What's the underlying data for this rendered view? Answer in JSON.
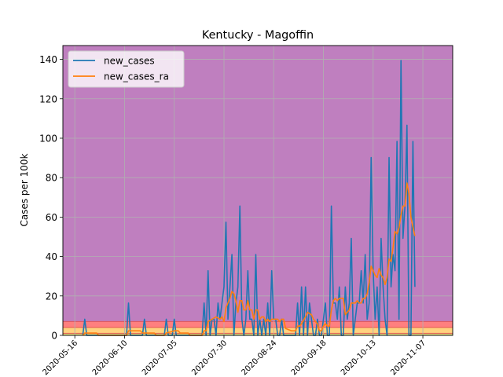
{
  "chart_data": {
    "type": "line",
    "title": "Kentucky - Magoffin",
    "xlabel": "",
    "ylabel": "Cases per 100k",
    "ylim": [
      0,
      147
    ],
    "yticks": [
      0,
      20,
      40,
      60,
      80,
      100,
      120,
      140
    ],
    "xlim": [
      "2020-05-10",
      "2020-11-22"
    ],
    "xticks": [
      "2020-05-16",
      "2020-06-10",
      "2020-07-05",
      "2020-07-30",
      "2020-08-24",
      "2020-09-18",
      "2020-10-13",
      "2020-11-07"
    ],
    "grid": true,
    "legend": "top-left",
    "bands": [
      {
        "from": 0,
        "to": 1,
        "color": "#e0e07f"
      },
      {
        "from": 1,
        "to": 4,
        "color": "#ffd27f"
      },
      {
        "from": 4,
        "to": 7,
        "color": "#ff7f7f"
      },
      {
        "from": 7,
        "to": 147,
        "color": "#bf7fbf"
      }
    ],
    "band_edges": [
      1,
      4,
      7
    ],
    "series": [
      {
        "name": "new_cases",
        "color": "#1f77b4",
        "points": [
          [
            "2020-05-20",
            0
          ],
          [
            "2020-05-21",
            8.2
          ],
          [
            "2020-05-22",
            0
          ],
          [
            "2020-06-11",
            0
          ],
          [
            "2020-06-12",
            16.4
          ],
          [
            "2020-06-13",
            0
          ],
          [
            "2020-06-19",
            0
          ],
          [
            "2020-06-20",
            8.2
          ],
          [
            "2020-06-21",
            0
          ],
          [
            "2020-06-30",
            0
          ],
          [
            "2020-07-01",
            8.2
          ],
          [
            "2020-07-02",
            0
          ],
          [
            "2020-07-04",
            0
          ],
          [
            "2020-07-05",
            8.2
          ],
          [
            "2020-07-06",
            0
          ],
          [
            "2020-07-19",
            0
          ],
          [
            "2020-07-20",
            16.4
          ],
          [
            "2020-07-21",
            0
          ],
          [
            "2020-07-22",
            32.8
          ],
          [
            "2020-07-23",
            0
          ],
          [
            "2020-07-24",
            8.2
          ],
          [
            "2020-07-25",
            8.2
          ],
          [
            "2020-07-26",
            0
          ],
          [
            "2020-07-27",
            16.4
          ],
          [
            "2020-07-28",
            8.2
          ],
          [
            "2020-07-29",
            16.4
          ],
          [
            "2020-07-30",
            24.6
          ],
          [
            "2020-07-31",
            57.4
          ],
          [
            "2020-08-01",
            8.2
          ],
          [
            "2020-08-02",
            24.6
          ],
          [
            "2020-08-03",
            41
          ],
          [
            "2020-08-04",
            0
          ],
          [
            "2020-08-05",
            16.4
          ],
          [
            "2020-08-06",
            24.6
          ],
          [
            "2020-08-07",
            65.6
          ],
          [
            "2020-08-08",
            8.2
          ],
          [
            "2020-08-09",
            0
          ],
          [
            "2020-08-10",
            8.2
          ],
          [
            "2020-08-11",
            32.8
          ],
          [
            "2020-08-12",
            8.2
          ],
          [
            "2020-08-13",
            8.2
          ],
          [
            "2020-08-14",
            0
          ],
          [
            "2020-08-15",
            41
          ],
          [
            "2020-08-16",
            0
          ],
          [
            "2020-08-17",
            8.2
          ],
          [
            "2020-08-18",
            0
          ],
          [
            "2020-08-19",
            8.2
          ],
          [
            "2020-08-20",
            0
          ],
          [
            "2020-08-21",
            16.4
          ],
          [
            "2020-08-22",
            0
          ],
          [
            "2020-08-23",
            32.8
          ],
          [
            "2020-08-24",
            8.2
          ],
          [
            "2020-08-25",
            8.2
          ],
          [
            "2020-08-26",
            0
          ],
          [
            "2020-08-27",
            0
          ],
          [
            "2020-08-28",
            8.2
          ],
          [
            "2020-08-29",
            0
          ],
          [
            "2020-09-02",
            0
          ],
          [
            "2020-09-04",
            0
          ],
          [
            "2020-09-05",
            16.4
          ],
          [
            "2020-09-06",
            0
          ],
          [
            "2020-09-07",
            24.6
          ],
          [
            "2020-09-08",
            0
          ],
          [
            "2020-09-09",
            24.6
          ],
          [
            "2020-09-10",
            0
          ],
          [
            "2020-09-11",
            16.4
          ],
          [
            "2020-09-12",
            8.2
          ],
          [
            "2020-09-13",
            0
          ],
          [
            "2020-09-14",
            0
          ],
          [
            "2020-09-15",
            8.2
          ],
          [
            "2020-09-16",
            0
          ],
          [
            "2020-09-17",
            0
          ],
          [
            "2020-09-18",
            8.2
          ],
          [
            "2020-09-19",
            16.4
          ],
          [
            "2020-09-20",
            0
          ],
          [
            "2020-09-21",
            0
          ],
          [
            "2020-09-22",
            65.6
          ],
          [
            "2020-09-23",
            16.4
          ],
          [
            "2020-09-24",
            16.4
          ],
          [
            "2020-09-25",
            8.2
          ],
          [
            "2020-09-26",
            24.6
          ],
          [
            "2020-09-27",
            0
          ],
          [
            "2020-09-28",
            0
          ],
          [
            "2020-09-29",
            24.6
          ],
          [
            "2020-09-30",
            8.2
          ],
          [
            "2020-10-01",
            16.4
          ],
          [
            "2020-10-02",
            49.2
          ],
          [
            "2020-10-03",
            0
          ],
          [
            "2020-10-04",
            8.2
          ],
          [
            "2020-10-05",
            16.4
          ],
          [
            "2020-10-06",
            16.4
          ],
          [
            "2020-10-07",
            32.8
          ],
          [
            "2020-10-08",
            16.4
          ],
          [
            "2020-10-09",
            41
          ],
          [
            "2020-10-10",
            8.2
          ],
          [
            "2020-10-11",
            16.4
          ],
          [
            "2020-10-12",
            90.2
          ],
          [
            "2020-10-13",
            32.8
          ],
          [
            "2020-10-14",
            8.2
          ],
          [
            "2020-10-15",
            24.6
          ],
          [
            "2020-10-16",
            0
          ],
          [
            "2020-10-17",
            49.2
          ],
          [
            "2020-10-18",
            24.6
          ],
          [
            "2020-10-19",
            8.2
          ],
          [
            "2020-10-20",
            0
          ],
          [
            "2020-10-21",
            90.2
          ],
          [
            "2020-10-22",
            24.6
          ],
          [
            "2020-10-23",
            41
          ],
          [
            "2020-10-24",
            32.8
          ],
          [
            "2020-10-25",
            98.4
          ],
          [
            "2020-10-26",
            8.2
          ],
          [
            "2020-10-27",
            139.4
          ],
          [
            "2020-10-28",
            49.2
          ],
          [
            "2020-10-29",
            65.6
          ],
          [
            "2020-10-30",
            106.6
          ],
          [
            "2020-10-31",
            0
          ],
          [
            "2020-11-01",
            0
          ],
          [
            "2020-11-02",
            98.4
          ],
          [
            "2020-11-03",
            24.6
          ]
        ]
      },
      {
        "name": "new_cases_ra",
        "color": "#ff7f0e",
        "points": [
          [
            "2020-05-20",
            0
          ],
          [
            "2020-05-21",
            1.2
          ],
          [
            "2020-05-27",
            1.2
          ],
          [
            "2020-05-28",
            0
          ],
          [
            "2020-06-11",
            0
          ],
          [
            "2020-06-12",
            2.3
          ],
          [
            "2020-06-18",
            2.3
          ],
          [
            "2020-06-19",
            1.2
          ],
          [
            "2020-06-25",
            1.2
          ],
          [
            "2020-06-26",
            0
          ],
          [
            "2020-06-30",
            0
          ],
          [
            "2020-07-01",
            1.2
          ],
          [
            "2020-07-05",
            2.3
          ],
          [
            "2020-07-07",
            2.3
          ],
          [
            "2020-07-08",
            1.2
          ],
          [
            "2020-07-12",
            1.2
          ],
          [
            "2020-07-13",
            0
          ],
          [
            "2020-07-19",
            0
          ],
          [
            "2020-07-20",
            2.3
          ],
          [
            "2020-07-21",
            2.3
          ],
          [
            "2020-07-22",
            7
          ],
          [
            "2020-07-24",
            8.2
          ],
          [
            "2020-07-26",
            9.4
          ],
          [
            "2020-07-28",
            8.2
          ],
          [
            "2020-07-29",
            9.4
          ],
          [
            "2020-07-30",
            7
          ],
          [
            "2020-07-31",
            14
          ],
          [
            "2020-08-01",
            16.4
          ],
          [
            "2020-08-02",
            18.8
          ],
          [
            "2020-08-03",
            22.3
          ],
          [
            "2020-08-04",
            21.1
          ],
          [
            "2020-08-05",
            17.6
          ],
          [
            "2020-08-06",
            11.7
          ],
          [
            "2020-08-07",
            17.6
          ],
          [
            "2020-08-08",
            17.6
          ],
          [
            "2020-08-09",
            12.9
          ],
          [
            "2020-08-10",
            12.9
          ],
          [
            "2020-08-11",
            17.6
          ],
          [
            "2020-08-12",
            12.9
          ],
          [
            "2020-08-13",
            12.9
          ],
          [
            "2020-08-14",
            8.2
          ],
          [
            "2020-08-15",
            12.9
          ],
          [
            "2020-08-16",
            12.9
          ],
          [
            "2020-08-17",
            8.2
          ],
          [
            "2020-08-18",
            9.4
          ],
          [
            "2020-08-19",
            9.4
          ],
          [
            "2020-08-20",
            7
          ],
          [
            "2020-08-21",
            8.2
          ],
          [
            "2020-08-22",
            7
          ],
          [
            "2020-08-23",
            8.2
          ],
          [
            "2020-08-24",
            8.2
          ],
          [
            "2020-08-26",
            8.2
          ],
          [
            "2020-08-27",
            7
          ],
          [
            "2020-08-28",
            8.2
          ],
          [
            "2020-08-29",
            8.2
          ],
          [
            "2020-08-30",
            3.5
          ],
          [
            "2020-09-02",
            2.3
          ],
          [
            "2020-09-04",
            2.3
          ],
          [
            "2020-09-05",
            4.7
          ],
          [
            "2020-09-06",
            4.7
          ],
          [
            "2020-09-07",
            5.9
          ],
          [
            "2020-09-09",
            9.4
          ],
          [
            "2020-09-10",
            11.7
          ],
          [
            "2020-09-12",
            10.5
          ],
          [
            "2020-09-13",
            8.2
          ],
          [
            "2020-09-14",
            7
          ],
          [
            "2020-09-15",
            5.9
          ],
          [
            "2020-09-16",
            2.3
          ],
          [
            "2020-09-17",
            2.3
          ],
          [
            "2020-09-18",
            4.7
          ],
          [
            "2020-09-19",
            5.9
          ],
          [
            "2020-09-20",
            4.7
          ],
          [
            "2020-09-21",
            4.7
          ],
          [
            "2020-09-22",
            12.9
          ],
          [
            "2020-09-23",
            17.6
          ],
          [
            "2020-09-24",
            18.8
          ],
          [
            "2020-09-25",
            17.6
          ],
          [
            "2020-09-26",
            18.8
          ],
          [
            "2020-09-27",
            18.8
          ],
          [
            "2020-09-28",
            18.8
          ],
          [
            "2020-09-29",
            10.5
          ],
          [
            "2020-09-30",
            11.7
          ],
          [
            "2020-10-01",
            12.9
          ],
          [
            "2020-10-02",
            16.4
          ],
          [
            "2020-10-03",
            16.4
          ],
          [
            "2020-10-04",
            16.4
          ],
          [
            "2020-10-05",
            17.6
          ],
          [
            "2020-10-06",
            16.4
          ],
          [
            "2020-10-07",
            16.4
          ],
          [
            "2020-10-08",
            18.8
          ],
          [
            "2020-10-09",
            18.8
          ],
          [
            "2020-10-10",
            21.1
          ],
          [
            "2020-10-11",
            26.9
          ],
          [
            "2020-10-12",
            35.1
          ],
          [
            "2020-10-13",
            32.8
          ],
          [
            "2020-10-14",
            30.5
          ],
          [
            "2020-10-15",
            29.3
          ],
          [
            "2020-10-16",
            33.9
          ],
          [
            "2020-10-17",
            30.5
          ],
          [
            "2020-10-18",
            29.3
          ],
          [
            "2020-10-19",
            25.8
          ],
          [
            "2020-10-20",
            29.3
          ],
          [
            "2020-10-21",
            38.7
          ],
          [
            "2020-10-22",
            37.5
          ],
          [
            "2020-10-23",
            44.5
          ],
          [
            "2020-10-24",
            52.7
          ],
          [
            "2020-10-25",
            51.5
          ],
          [
            "2020-10-26",
            54.5
          ],
          [
            "2020-10-27",
            61
          ],
          [
            "2020-10-28",
            65.6
          ],
          [
            "2020-10-29",
            65.6
          ],
          [
            "2020-10-30",
            77.3
          ],
          [
            "2020-10-31",
            72
          ],
          [
            "2020-11-01",
            60
          ],
          [
            "2020-11-02",
            55
          ],
          [
            "2020-11-03",
            50.4
          ]
        ]
      }
    ]
  }
}
